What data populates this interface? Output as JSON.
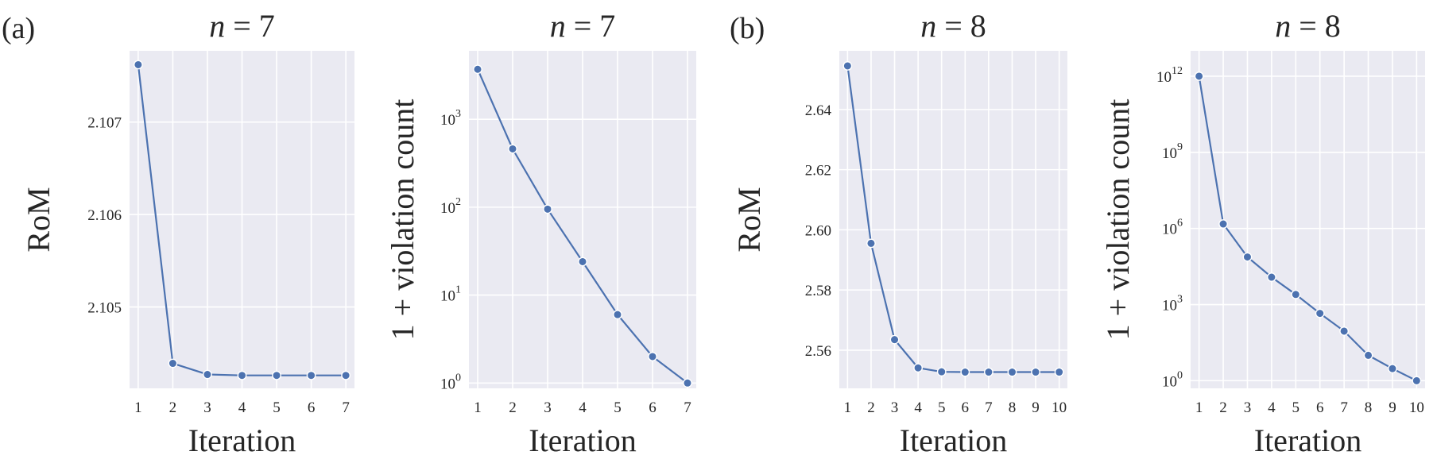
{
  "figure": {
    "panel_labels": [
      "(a)",
      "(b)"
    ]
  },
  "chart_data": [
    {
      "type": "line",
      "title": "n = 7",
      "title_var": "n",
      "title_rest": " = 7",
      "xlabel": "Iteration",
      "ylabel": "RoM",
      "x": [
        1,
        2,
        3,
        4,
        5,
        6,
        7
      ],
      "y": [
        2.10762,
        2.10439,
        2.10427,
        2.10426,
        2.10426,
        2.10426,
        2.10426
      ],
      "xticks": [
        "1",
        "2",
        "3",
        "4",
        "5",
        "6",
        "7"
      ],
      "yticks": [
        2.105,
        2.106,
        2.107
      ],
      "ytick_labels": [
        "2.105",
        "2.106",
        "2.107"
      ],
      "xlim": [
        0.75,
        7.25
      ],
      "ylim": [
        2.10412,
        2.10777
      ],
      "yscale": "linear",
      "grid": true,
      "marker": "circle",
      "color": "#4c72b0"
    },
    {
      "type": "line",
      "title": "n = 7",
      "title_var": "n",
      "title_rest": " = 7",
      "xlabel": "Iteration",
      "ylabel": "1 + violation count",
      "x": [
        1,
        2,
        3,
        4,
        5,
        6,
        7
      ],
      "y": [
        3700,
        460,
        95,
        24,
        6,
        2,
        1
      ],
      "xticks": [
        "1",
        "2",
        "3",
        "4",
        "5",
        "6",
        "7"
      ],
      "yticks": [
        1,
        10,
        100,
        1000
      ],
      "ytick_labels": [
        [
          "10",
          "0"
        ],
        [
          "10",
          "1"
        ],
        [
          "10",
          "2"
        ],
        [
          "10",
          "3"
        ]
      ],
      "xlim": [
        0.75,
        7.25
      ],
      "ylim": [
        0.87,
        6000
      ],
      "yscale": "log",
      "grid": true,
      "marker": "circle",
      "color": "#4c72b0"
    },
    {
      "type": "line",
      "title": "n = 8",
      "title_var": "n",
      "title_rest": " = 8",
      "xlabel": "Iteration",
      "ylabel": "RoM",
      "x": [
        1,
        2,
        3,
        4,
        5,
        6,
        7,
        8,
        9,
        10
      ],
      "y": [
        2.6545,
        2.5955,
        2.5635,
        2.5541,
        2.5528,
        2.5527,
        2.5527,
        2.5527,
        2.5527,
        2.5527
      ],
      "xticks": [
        "1",
        "2",
        "3",
        "4",
        "5",
        "6",
        "7",
        "8",
        "9",
        "10"
      ],
      "yticks": [
        2.56,
        2.58,
        2.6,
        2.62,
        2.64
      ],
      "ytick_labels": [
        "2.56",
        "2.58",
        "2.60",
        "2.62",
        "2.64"
      ],
      "xlim": [
        0.65,
        10.35
      ],
      "ylim": [
        2.5473,
        2.6595
      ],
      "yscale": "linear",
      "grid": true,
      "marker": "circle",
      "color": "#4c72b0"
    },
    {
      "type": "line",
      "title": "n = 8",
      "title_var": "n",
      "title_rest": " = 8",
      "xlabel": "Iteration",
      "ylabel": "1 + violation count",
      "x": [
        1,
        2,
        3,
        4,
        5,
        6,
        7,
        8,
        9,
        10
      ],
      "y": [
        1000000000000.0,
        1500000.0,
        75000,
        12000,
        2500,
        450,
        90,
        10,
        3,
        1
      ],
      "xticks": [
        "1",
        "2",
        "3",
        "4",
        "5",
        "6",
        "7",
        "8",
        "9",
        "10"
      ],
      "yticks": [
        1,
        1000,
        1000000,
        1000000000,
        1000000000000
      ],
      "ytick_labels": [
        [
          "10",
          "0"
        ],
        [
          "10",
          "3"
        ],
        [
          "10",
          "6"
        ],
        [
          "10",
          "9"
        ],
        [
          "10",
          "12"
        ]
      ],
      "xlim": [
        0.65,
        10.35
      ],
      "ylim": [
        0.5,
        10000000000000.0
      ],
      "yscale": "log",
      "grid": true,
      "marker": "circle",
      "color": "#4c72b0"
    }
  ]
}
